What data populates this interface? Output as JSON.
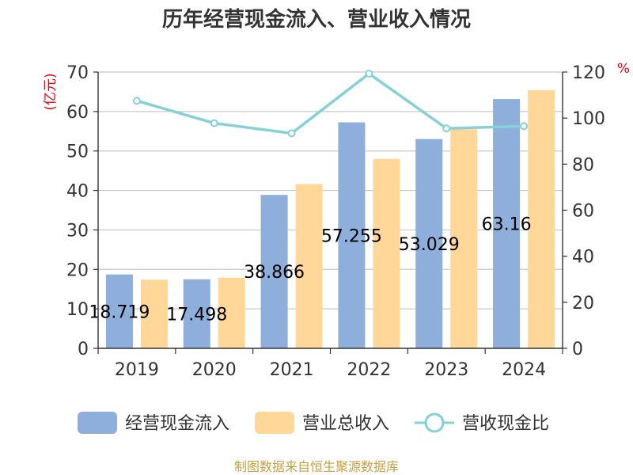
{
  "chart_data": {
    "type": "bar",
    "title": "历年经营现金流入、营业收入情况",
    "categories": [
      "2019",
      "2020",
      "2021",
      "2022",
      "2023",
      "2024"
    ],
    "series": [
      {
        "name": "经营现金流入",
        "kind": "bar",
        "axis": "left",
        "color": "#8eaedb",
        "values": [
          18.719,
          17.498,
          38.866,
          57.255,
          53.029,
          63.16
        ],
        "labels": [
          "18.719",
          "17.498",
          "38.866",
          "57.255",
          "53.029",
          "63.16"
        ]
      },
      {
        "name": "营业总收入",
        "kind": "bar",
        "axis": "left",
        "color": "#ffd899",
        "values": [
          17.4,
          17.9,
          41.6,
          48.0,
          55.5,
          65.4
        ]
      },
      {
        "name": "营收现金比",
        "kind": "line",
        "axis": "right",
        "color": "#86d0d8",
        "values": [
          107.5,
          97.8,
          93.4,
          119.3,
          95.5,
          96.5
        ]
      }
    ],
    "y_left": {
      "unit": "(亿元)",
      "min": 0,
      "max": 70,
      "ticks": [
        0,
        10,
        20,
        30,
        40,
        50,
        60,
        70
      ]
    },
    "y_right": {
      "unit": "%",
      "min": 0,
      "max": 120,
      "ticks": [
        0,
        20,
        40,
        60,
        80,
        100,
        120
      ]
    },
    "grid": true,
    "legend_position": "bottom"
  },
  "source": "制图数据来自恒生聚源数据库"
}
